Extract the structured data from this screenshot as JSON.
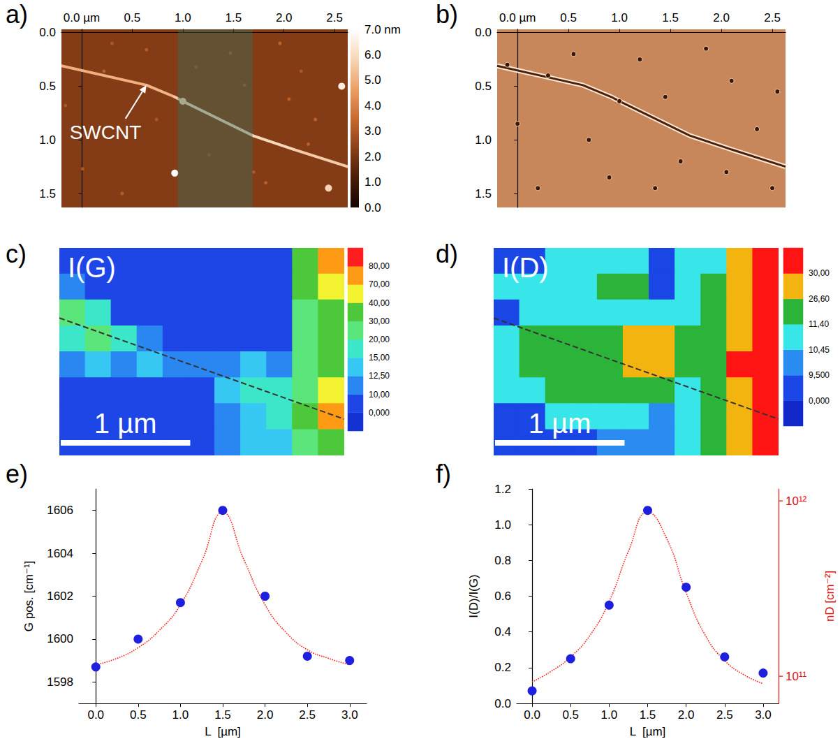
{
  "chart_data": [
    {
      "type": "afm_height",
      "title": "a)",
      "xlim": [
        -0.2,
        2.63
      ],
      "xticks": [
        {
          "value": 0,
          "label": "0.0 µm"
        },
        {
          "value": 0.5,
          "label": "0.5"
        },
        {
          "value": 1,
          "label": "1.0"
        },
        {
          "value": 1.5,
          "label": "1.5"
        },
        {
          "value": 2,
          "label": "2.0"
        },
        {
          "value": 2.5,
          "label": "2.5"
        }
      ],
      "ylim": [
        -0.03,
        1.63
      ],
      "yticks": [
        {
          "value": 0,
          "label": "0.0"
        },
        {
          "value": 0.5,
          "label": "0.5"
        },
        {
          "value": 1,
          "label": "1.0"
        },
        {
          "value": 1.5,
          "label": "1.5"
        }
      ],
      "substrate": 2.2,
      "colorbar": {
        "range": [
          0,
          7
        ],
        "ticks": [
          {
            "value": 0,
            "label": "0.0"
          },
          {
            "value": 1,
            "label": "1.0"
          },
          {
            "value": 2,
            "label": "2.0"
          },
          {
            "value": 3,
            "label": "3.0"
          },
          {
            "value": 4,
            "label": "4.0"
          },
          {
            "value": 5,
            "label": "5.0"
          },
          {
            "value": 6,
            "label": "6.0"
          },
          {
            "value": 7,
            "label": "7.0 nm"
          }
        ],
        "colors": [
          "#140500",
          "#4a1c07",
          "#8a4018",
          "#c86a30",
          "#eba069",
          "#f8d6b6",
          "#ffffff"
        ]
      },
      "highlight": {
        "x": [
          0.95,
          1.69
        ],
        "color": "#3f6a56"
      },
      "nanotube": {
        "x": [
          -0.2,
          0.64,
          0.92,
          1.0,
          1.69,
          2.1,
          2.63
        ],
        "y": [
          0.31,
          0.49,
          0.6,
          0.64,
          0.96,
          1.09,
          1.25
        ],
        "values": [
          5,
          5,
          5.2,
          6,
          6.2,
          5.6,
          5.6
        ]
      },
      "particles": {
        "x": [
          0.92,
          2.57,
          2.44,
          0.22,
          1.47,
          1.96,
          2.17,
          1.82,
          1.26,
          0.64,
          0.01,
          2.31,
          -0.16,
          1.61,
          1.13,
          2.24,
          0.74,
          0.4,
          1.7,
          2.05,
          0.3,
          1.0
        ],
        "y": [
          1.31,
          0.5,
          1.45,
          0.36,
          0.19,
          0.1,
          0.36,
          1.4,
          1.14,
          0.16,
          1.27,
          0.81,
          0.68,
          0.49,
          0.32,
          1.04,
          0.81,
          1.5,
          1.3,
          0.62,
          0.1,
          0.64
        ],
        "values": [
          7,
          6.5,
          5.8,
          3.2,
          3.0,
          3.3,
          3.0,
          3.2,
          2.9,
          3.1,
          3.0,
          3.3,
          3.0,
          3.0,
          2.9,
          3.2,
          3.0,
          3.1,
          3.0,
          3.2,
          3.0,
          6.0
        ]
      },
      "annotations": [
        {
          "text": "SWCNT"
        }
      ]
    },
    {
      "type": "afm_phase",
      "title": "b)",
      "xlim": [
        -0.2,
        2.63
      ],
      "xticks": [
        {
          "value": 0,
          "label": "0.0 µm"
        },
        {
          "value": 0.5,
          "label": "0.5"
        },
        {
          "value": 1,
          "label": "1.0"
        },
        {
          "value": 1.5,
          "label": "1.5"
        },
        {
          "value": 2,
          "label": "2.0"
        },
        {
          "value": 2.5,
          "label": "2.5"
        }
      ],
      "ylim": [
        -0.03,
        1.63
      ],
      "yticks": [
        {
          "value": 0,
          "label": "0.0"
        },
        {
          "value": 0.5,
          "label": "0.5"
        },
        {
          "value": 1,
          "label": "1.0"
        },
        {
          "value": 1.5,
          "label": "1.5"
        }
      ],
      "nanotube": {
        "x": [
          -0.2,
          0.64,
          0.92,
          1.0,
          1.69,
          2.1,
          2.63
        ],
        "y": [
          0.31,
          0.49,
          0.6,
          0.64,
          0.96,
          1.09,
          1.25
        ]
      },
      "particles": {
        "x": [
          0.0,
          0.3,
          0.55,
          0.9,
          1.2,
          1.45,
          1.6,
          1.85,
          2.1,
          2.35,
          2.5,
          0.2,
          0.7,
          1.35,
          2.05,
          -0.1,
          2.55,
          1.0
        ],
        "y": [
          0.85,
          0.4,
          0.2,
          1.35,
          0.25,
          0.6,
          1.2,
          0.15,
          0.45,
          0.9,
          1.45,
          1.45,
          1.0,
          1.45,
          1.3,
          0.3,
          0.55,
          0.64
        ]
      }
    },
    {
      "type": "contour",
      "title": "c)",
      "annotations": [
        {
          "text": "I(G)"
        }
      ],
      "tick_labels": false,
      "xlim": [
        0,
        2.2
      ],
      "ylim": [
        0,
        1.6
      ],
      "x": [
        0.1,
        0.3,
        0.5,
        0.7,
        0.9,
        1.1,
        1.3,
        1.5,
        1.7,
        1.9,
        2.1
      ],
      "y": [
        0.1,
        0.3,
        0.5,
        0.7,
        0.9,
        1.1,
        1.3,
        1.5
      ],
      "values": [
        [
          5,
          5,
          5,
          5,
          5,
          5,
          5,
          5,
          5,
          35,
          72
        ],
        [
          11,
          5,
          5,
          5,
          5,
          5,
          5,
          5,
          5,
          30,
          45
        ],
        [
          22,
          16,
          5,
          5,
          5,
          5,
          5,
          5,
          5,
          25,
          35
        ],
        [
          18,
          25,
          16,
          11,
          5,
          5,
          5,
          5,
          5,
          22,
          30
        ],
        [
          11,
          13,
          11,
          13,
          12,
          11,
          11,
          13,
          11,
          20,
          35
        ],
        [
          5,
          5,
          5,
          5,
          5,
          5,
          13,
          17,
          16,
          22,
          45
        ],
        [
          5,
          5,
          5,
          5,
          5,
          5,
          12,
          14,
          16,
          30,
          72
        ],
        [
          5,
          5,
          5,
          5,
          5,
          5,
          11,
          13,
          14,
          25,
          35
        ]
      ],
      "levels": [
        {
          "value": 0,
          "label": "0,000"
        },
        {
          "value": 10,
          "label": "10,00"
        },
        {
          "value": 12.5,
          "label": "12,50"
        },
        {
          "value": 15,
          "label": "15,00"
        },
        {
          "value": 20,
          "label": "20,00"
        },
        {
          "value": 30,
          "label": "30,00"
        },
        {
          "value": 40,
          "label": "40,00"
        },
        {
          "value": 70,
          "label": "70,00"
        },
        {
          "value": 80,
          "label": "80,00"
        }
      ],
      "colors": [
        "#1432d2",
        "#1e46e6",
        "#2a86f0",
        "#36c8f2",
        "#3ce6c8",
        "#5ae67a",
        "#4cc83a",
        "#f2f230",
        "#ff9a14",
        "#ff1e1e"
      ],
      "line": {
        "x": [
          0,
          2.2
        ],
        "y": [
          0.54,
          1.32
        ],
        "line_style": "dashed"
      },
      "scale_bar": {
        "length": 1,
        "label": "1 µm"
      }
    },
    {
      "type": "contour",
      "title": "d)",
      "annotations": [
        {
          "text": "I(D)"
        }
      ],
      "tick_labels": false,
      "xlim": [
        0,
        2.2
      ],
      "ylim": [
        0,
        1.6
      ],
      "x": [
        0.1,
        0.3,
        0.5,
        0.7,
        0.9,
        1.1,
        1.3,
        1.5,
        1.7,
        1.9,
        2.1
      ],
      "y": [
        0.1,
        0.3,
        0.5,
        0.7,
        0.9,
        1.1,
        1.3,
        1.5
      ],
      "values": [
        [
          5,
          5,
          10.8,
          10.8,
          10.8,
          10.8,
          5,
          10.8,
          10.8,
          28,
          35
        ],
        [
          10.8,
          10.8,
          10.8,
          10.8,
          12,
          12,
          5,
          10.8,
          15,
          28,
          35
        ],
        [
          5,
          10.8,
          10.8,
          10.8,
          10.8,
          10.8,
          10.8,
          10.8,
          15,
          28,
          35
        ],
        [
          10.8,
          15,
          15,
          12,
          15,
          28,
          28,
          15,
          15,
          28,
          35
        ],
        [
          10.8,
          12,
          15,
          15,
          15,
          28,
          28,
          15,
          15,
          35,
          35
        ],
        [
          10.8,
          10.8,
          12,
          12,
          12,
          15,
          12,
          10.8,
          12,
          28,
          35
        ],
        [
          5,
          5,
          10.8,
          10.8,
          10.8,
          10.8,
          10,
          10.8,
          15,
          28,
          35
        ],
        [
          5,
          5,
          5,
          5,
          10,
          10,
          10,
          10.8,
          15,
          28,
          35
        ]
      ],
      "levels": [
        {
          "value": 0,
          "label": "0,000"
        },
        {
          "value": 9.5,
          "label": "9,500"
        },
        {
          "value": 10.45,
          "label": "10,45"
        },
        {
          "value": 11.4,
          "label": "11,40"
        },
        {
          "value": 26.6,
          "label": "26,60"
        },
        {
          "value": 30,
          "label": "30,00"
        }
      ],
      "colors": [
        "#1228c8",
        "#1a46e6",
        "#2a8cf0",
        "#38e6ea",
        "#2cb43a",
        "#f4b410",
        "#ff1414"
      ],
      "line": {
        "x": [
          0,
          2.2
        ],
        "y": [
          0.54,
          1.32
        ],
        "line_style": "dashed"
      },
      "scale_bar": {
        "length": 1,
        "label": "1 µm"
      }
    },
    {
      "type": "scatter",
      "title": "e)",
      "xlabel": "L  [µm]",
      "ylabel": "G pos. [cm⁻¹]",
      "xlim": [
        -0.2,
        3.2
      ],
      "xticks": [
        {
          "value": 0,
          "label": "0.0"
        },
        {
          "value": 0.5,
          "label": "0.5"
        },
        {
          "value": 1,
          "label": "1.0"
        },
        {
          "value": 1.5,
          "label": "1.5"
        },
        {
          "value": 2,
          "label": "2.0"
        },
        {
          "value": 2.5,
          "label": "2.5"
        },
        {
          "value": 3,
          "label": "3.0"
        }
      ],
      "ylim": [
        1597,
        1607
      ],
      "yticks": [
        1598,
        1600,
        1602,
        1604,
        1606
      ],
      "series": [
        {
          "type": "line",
          "color": "#ff2020",
          "line_style": "dotted",
          "x": [
            0,
            0.25,
            0.5,
            0.75,
            1,
            1.25,
            1.5,
            1.75,
            2,
            2.25,
            2.5,
            2.75,
            3
          ],
          "values": [
            1598.8,
            1599.1,
            1599.6,
            1600.4,
            1601.6,
            1603.6,
            1605.9,
            1603.7,
            1601.6,
            1600.3,
            1599.5,
            1599.1,
            1598.8
          ]
        },
        {
          "type": "scatter",
          "color": "#1f1fe0",
          "marker": "circle",
          "x": [
            0,
            0.5,
            1,
            1.5,
            2,
            2.5,
            3
          ],
          "values": [
            1598.7,
            1600,
            1601.7,
            1606,
            1602,
            1599.2,
            1599
          ]
        }
      ]
    },
    {
      "type": "scatter",
      "title": "f)",
      "xlabel": "L  [µm]",
      "ylabel": "I(D)/I(G)",
      "y2label": "nD [cm⁻²]",
      "log": "y2",
      "xlim": [
        -0.2,
        3.2
      ],
      "xticks": [
        {
          "value": 0,
          "label": "0.0"
        },
        {
          "value": 0.5,
          "label": "0.5"
        },
        {
          "value": 1,
          "label": "1.0"
        },
        {
          "value": 1.5,
          "label": "1.5"
        },
        {
          "value": 2,
          "label": "2.0"
        },
        {
          "value": 2.5,
          "label": "2.5"
        },
        {
          "value": 3,
          "label": "3.0"
        }
      ],
      "ylim": [
        0,
        1.2
      ],
      "yticks": [
        {
          "value": 0,
          "label": "0.0"
        },
        {
          "value": 0.2,
          "label": "0.2"
        },
        {
          "value": 0.4,
          "label": "0.4"
        },
        {
          "value": 0.6,
          "label": "0.6"
        },
        {
          "value": 0.8,
          "label": "0.8"
        },
        {
          "value": 1,
          "label": "1.0"
        },
        {
          "value": 1.2,
          "label": "1.2"
        }
      ],
      "y2lim": [
        70000000000,
        1170000000000
      ],
      "y2ticks": [
        {
          "value": 100000000000,
          "label": "10¹¹"
        },
        {
          "value": 1000000000000,
          "label": "10¹²"
        }
      ],
      "series": [
        {
          "type": "line",
          "color": "#ff2020",
          "line_style": "dotted",
          "x": [
            0,
            0.25,
            0.5,
            0.75,
            1,
            1.25,
            1.5,
            1.75,
            2,
            2.25,
            2.5,
            2.75,
            3
          ],
          "values": [
            0.12,
            0.18,
            0.26,
            0.38,
            0.57,
            0.85,
            1.07,
            0.92,
            0.62,
            0.38,
            0.24,
            0.16,
            0.11
          ]
        },
        {
          "type": "scatter",
          "color": "#1f1fe0",
          "marker": "circle",
          "x": [
            0,
            0.5,
            1,
            1.5,
            2,
            2.5,
            3
          ],
          "values": [
            0.07,
            0.25,
            0.55,
            1.08,
            0.65,
            0.26,
            0.17
          ]
        }
      ]
    }
  ]
}
